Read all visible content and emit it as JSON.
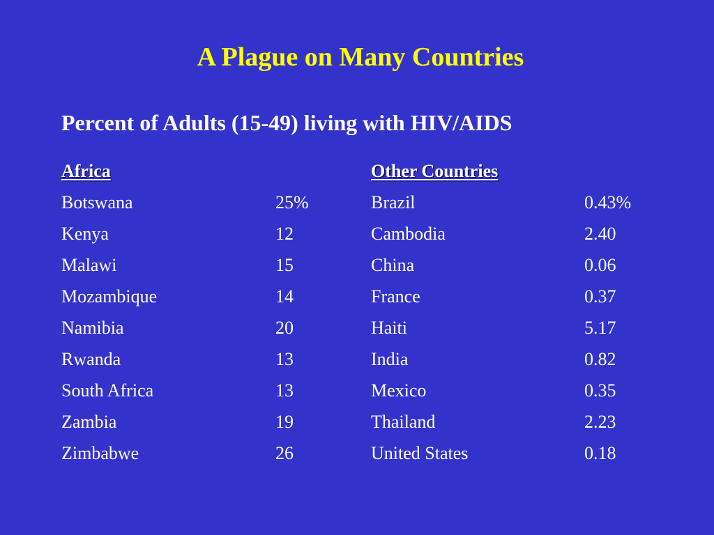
{
  "slide": {
    "title": "A Plague on Many Countries",
    "subtitle": "Percent of Adults (15-49) living with HIV/AIDS",
    "colors": {
      "background": "#3333cc",
      "title": "#ffff00",
      "text": "#ffffff"
    }
  },
  "africa": {
    "header": "Africa",
    "rows": [
      {
        "country": "Botswana",
        "value": "25%"
      },
      {
        "country": "Kenya",
        "value": "12"
      },
      {
        "country": "Malawi",
        "value": "15"
      },
      {
        "country": "Mozambique",
        "value": "14"
      },
      {
        "country": "Namibia",
        "value": "20"
      },
      {
        "country": "Rwanda",
        "value": "13"
      },
      {
        "country": "South Africa",
        "value": "13"
      },
      {
        "country": "Zambia",
        "value": "19"
      },
      {
        "country": "Zimbabwe",
        "value": "26"
      }
    ]
  },
  "other": {
    "header": "Other Countries",
    "rows": [
      {
        "country": "Brazil",
        "value": "0.43%"
      },
      {
        "country": "Cambodia",
        "value": "2.40"
      },
      {
        "country": "China",
        "value": "0.06"
      },
      {
        "country": "France",
        "value": "0.37"
      },
      {
        "country": "Haiti",
        "value": "5.17"
      },
      {
        "country": "India",
        "value": "0.82"
      },
      {
        "country": "Mexico",
        "value": "0.35"
      },
      {
        "country": "Thailand",
        "value": "2.23"
      },
      {
        "country": "United States",
        "value": "0.18"
      }
    ]
  }
}
